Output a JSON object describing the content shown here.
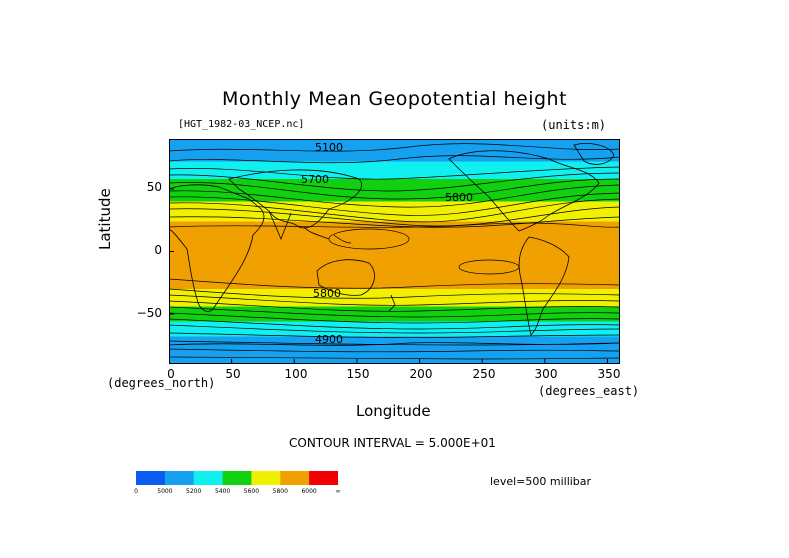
{
  "title": "Monthly Mean Geopotential height",
  "file_label": "[HGT_1982-03_NCEP.nc]",
  "units_label": "(units:m)",
  "y_axis": {
    "label": "Latitude",
    "unit_label": "(degrees_north)",
    "ticks": [
      "50",
      "0",
      "−50"
    ]
  },
  "x_axis": {
    "label": "Longitude",
    "unit_label": "(degrees_east)",
    "ticks": [
      "0",
      "50",
      "100",
      "150",
      "200",
      "250",
      "300",
      "350"
    ]
  },
  "contour_interval": "CONTOUR INTERVAL = 5.000E+01",
  "level": "level=500 millibar",
  "contour_labels": [
    "5100",
    "5700",
    "5800",
    "5800",
    "4900"
  ],
  "colorbar": {
    "labels": [
      "0",
      "5000",
      "5200",
      "5400",
      "5600",
      "5800",
      "6000",
      "∞"
    ],
    "colors": [
      "#0a5cf0",
      "#16a0f0",
      "#10f0f0",
      "#10d010",
      "#f0f000",
      "#f0a000",
      "#f00000"
    ]
  },
  "chart_data": {
    "type": "heatmap",
    "title": "Monthly Mean Geopotential height",
    "xlabel": "Longitude",
    "ylabel": "Latitude",
    "xlim": [
      0,
      360
    ],
    "ylim": [
      -90,
      90
    ],
    "levels": [
      0,
      5000,
      5200,
      5400,
      5600,
      5800,
      6000
    ],
    "bands": [
      {
        "lat_from": 90,
        "lat_to": 72,
        "range": "5000-5200"
      },
      {
        "lat_from": 72,
        "lat_to": 58,
        "range": "5200-5400"
      },
      {
        "lat_from": 58,
        "lat_to": 40,
        "range": "5400-5600"
      },
      {
        "lat_from": 40,
        "lat_to": 24,
        "range": "5600-5800"
      },
      {
        "lat_from": 24,
        "lat_to": -30,
        "range": "5800-6000"
      },
      {
        "lat_from": -30,
        "lat_to": -44,
        "range": "5600-5800"
      },
      {
        "lat_from": -44,
        "lat_to": -56,
        "range": "5400-5600"
      },
      {
        "lat_from": -56,
        "lat_to": -68,
        "range": "5200-5400"
      },
      {
        "lat_from": -68,
        "lat_to": -90,
        "range": "5000-5200"
      }
    ]
  }
}
